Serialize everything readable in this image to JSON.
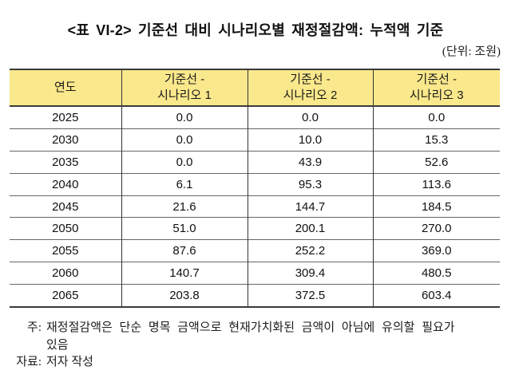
{
  "title": "<표 VI-2> 기준선 대비 시나리오별 재정절감액: 누적액 기준",
  "unit_label": "(단위: 조원)",
  "table": {
    "header": {
      "year": "연도",
      "scenarios": [
        {
          "line1": "기준선 -",
          "line2": "시나리오 1"
        },
        {
          "line1": "기준선 -",
          "line2": "시나리오 2"
        },
        {
          "line1": "기준선 -",
          "line2": "시나리오 3"
        }
      ]
    },
    "rows": [
      {
        "year": "2025",
        "values": [
          "0.0",
          "0.0",
          "0.0"
        ]
      },
      {
        "year": "2030",
        "values": [
          "0.0",
          "10.0",
          "15.3"
        ]
      },
      {
        "year": "2035",
        "values": [
          "0.0",
          "43.9",
          "52.6"
        ]
      },
      {
        "year": "2040",
        "values": [
          "6.1",
          "95.3",
          "113.6"
        ]
      },
      {
        "year": "2045",
        "values": [
          "21.6",
          "144.7",
          "184.5"
        ]
      },
      {
        "year": "2050",
        "values": [
          "51.0",
          "200.1",
          "270.0"
        ]
      },
      {
        "year": "2055",
        "values": [
          "87.6",
          "252.2",
          "369.0"
        ]
      },
      {
        "year": "2060",
        "values": [
          "140.7",
          "309.4",
          "480.5"
        ]
      },
      {
        "year": "2065",
        "values": [
          "203.8",
          "372.5",
          "603.4"
        ]
      }
    ]
  },
  "notes": {
    "note_label": "주:",
    "note_lines": [
      "재정절감액은 단순 명목 금액으로 현재가치화된 금액이 아님에 유의할 필요가",
      "있음"
    ],
    "source_label": "자료:",
    "source_text": "저자 작성"
  },
  "colors": {
    "header_bg": "#fae88c",
    "border_dark": "#3a3a3a",
    "row_line": "#666666",
    "text": "#111111"
  },
  "chart_data": {
    "type": "table",
    "title": "<표 VI-2> 기준선 대비 시나리오별 재정절감액: 누적액 기준",
    "unit": "조원",
    "columns": [
      "연도",
      "기준선 - 시나리오 1",
      "기준선 - 시나리오 2",
      "기준선 - 시나리오 3"
    ],
    "x": [
      2025,
      2030,
      2035,
      2040,
      2045,
      2050,
      2055,
      2060,
      2065
    ],
    "series": [
      {
        "name": "기준선 - 시나리오 1",
        "values": [
          0.0,
          0.0,
          0.0,
          6.1,
          21.6,
          51.0,
          87.6,
          140.7,
          203.8
        ]
      },
      {
        "name": "기준선 - 시나리오 2",
        "values": [
          0.0,
          10.0,
          43.9,
          95.3,
          144.7,
          200.1,
          252.2,
          309.4,
          372.5
        ]
      },
      {
        "name": "기준선 - 시나리오 3",
        "values": [
          0.0,
          15.3,
          52.6,
          113.6,
          184.5,
          270.0,
          369.0,
          480.5,
          603.4
        ]
      }
    ]
  }
}
